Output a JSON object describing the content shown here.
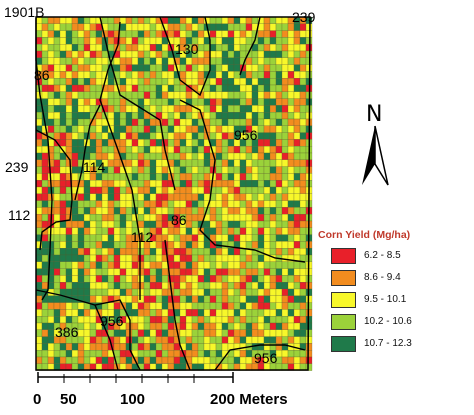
{
  "map": {
    "field_labels": [
      {
        "text": "1901B",
        "name": "field-label-1901b"
      },
      {
        "text": "239",
        "name": "field-label-239-top"
      },
      {
        "text": "130",
        "name": "field-label-130"
      },
      {
        "text": "86",
        "name": "field-label-86-top"
      },
      {
        "text": "956",
        "name": "field-label-956-mid"
      },
      {
        "text": "239",
        "name": "field-label-239-left"
      },
      {
        "text": "114",
        "name": "field-label-114"
      },
      {
        "text": "112",
        "name": "field-label-112-left"
      },
      {
        "text": "86",
        "name": "field-label-86-mid"
      },
      {
        "text": "112",
        "name": "field-label-112-mid"
      },
      {
        "text": "386",
        "name": "field-label-386"
      },
      {
        "text": "956",
        "name": "field-label-956-bottom-left"
      },
      {
        "text": "956",
        "name": "field-label-956-bottom-right"
      }
    ]
  },
  "north_arrow": {
    "letter": "N"
  },
  "scale_bar": {
    "ticks": [
      "0",
      "50",
      "100",
      "200 Meters"
    ]
  },
  "legend": {
    "title": "Corn Yield (Mg/ha)",
    "items": [
      {
        "label": "6.2 - 8.5",
        "color": "#e8202a"
      },
      {
        "label": "8.6 - 9.4",
        "color": "#f28c1f"
      },
      {
        "label": "9.5 - 10.1",
        "color": "#f7f72a"
      },
      {
        "label": "10.2 - 10.6",
        "color": "#9bd23a"
      },
      {
        "label": "10.7 - 12.3",
        "color": "#1f7a4a"
      }
    ]
  }
}
